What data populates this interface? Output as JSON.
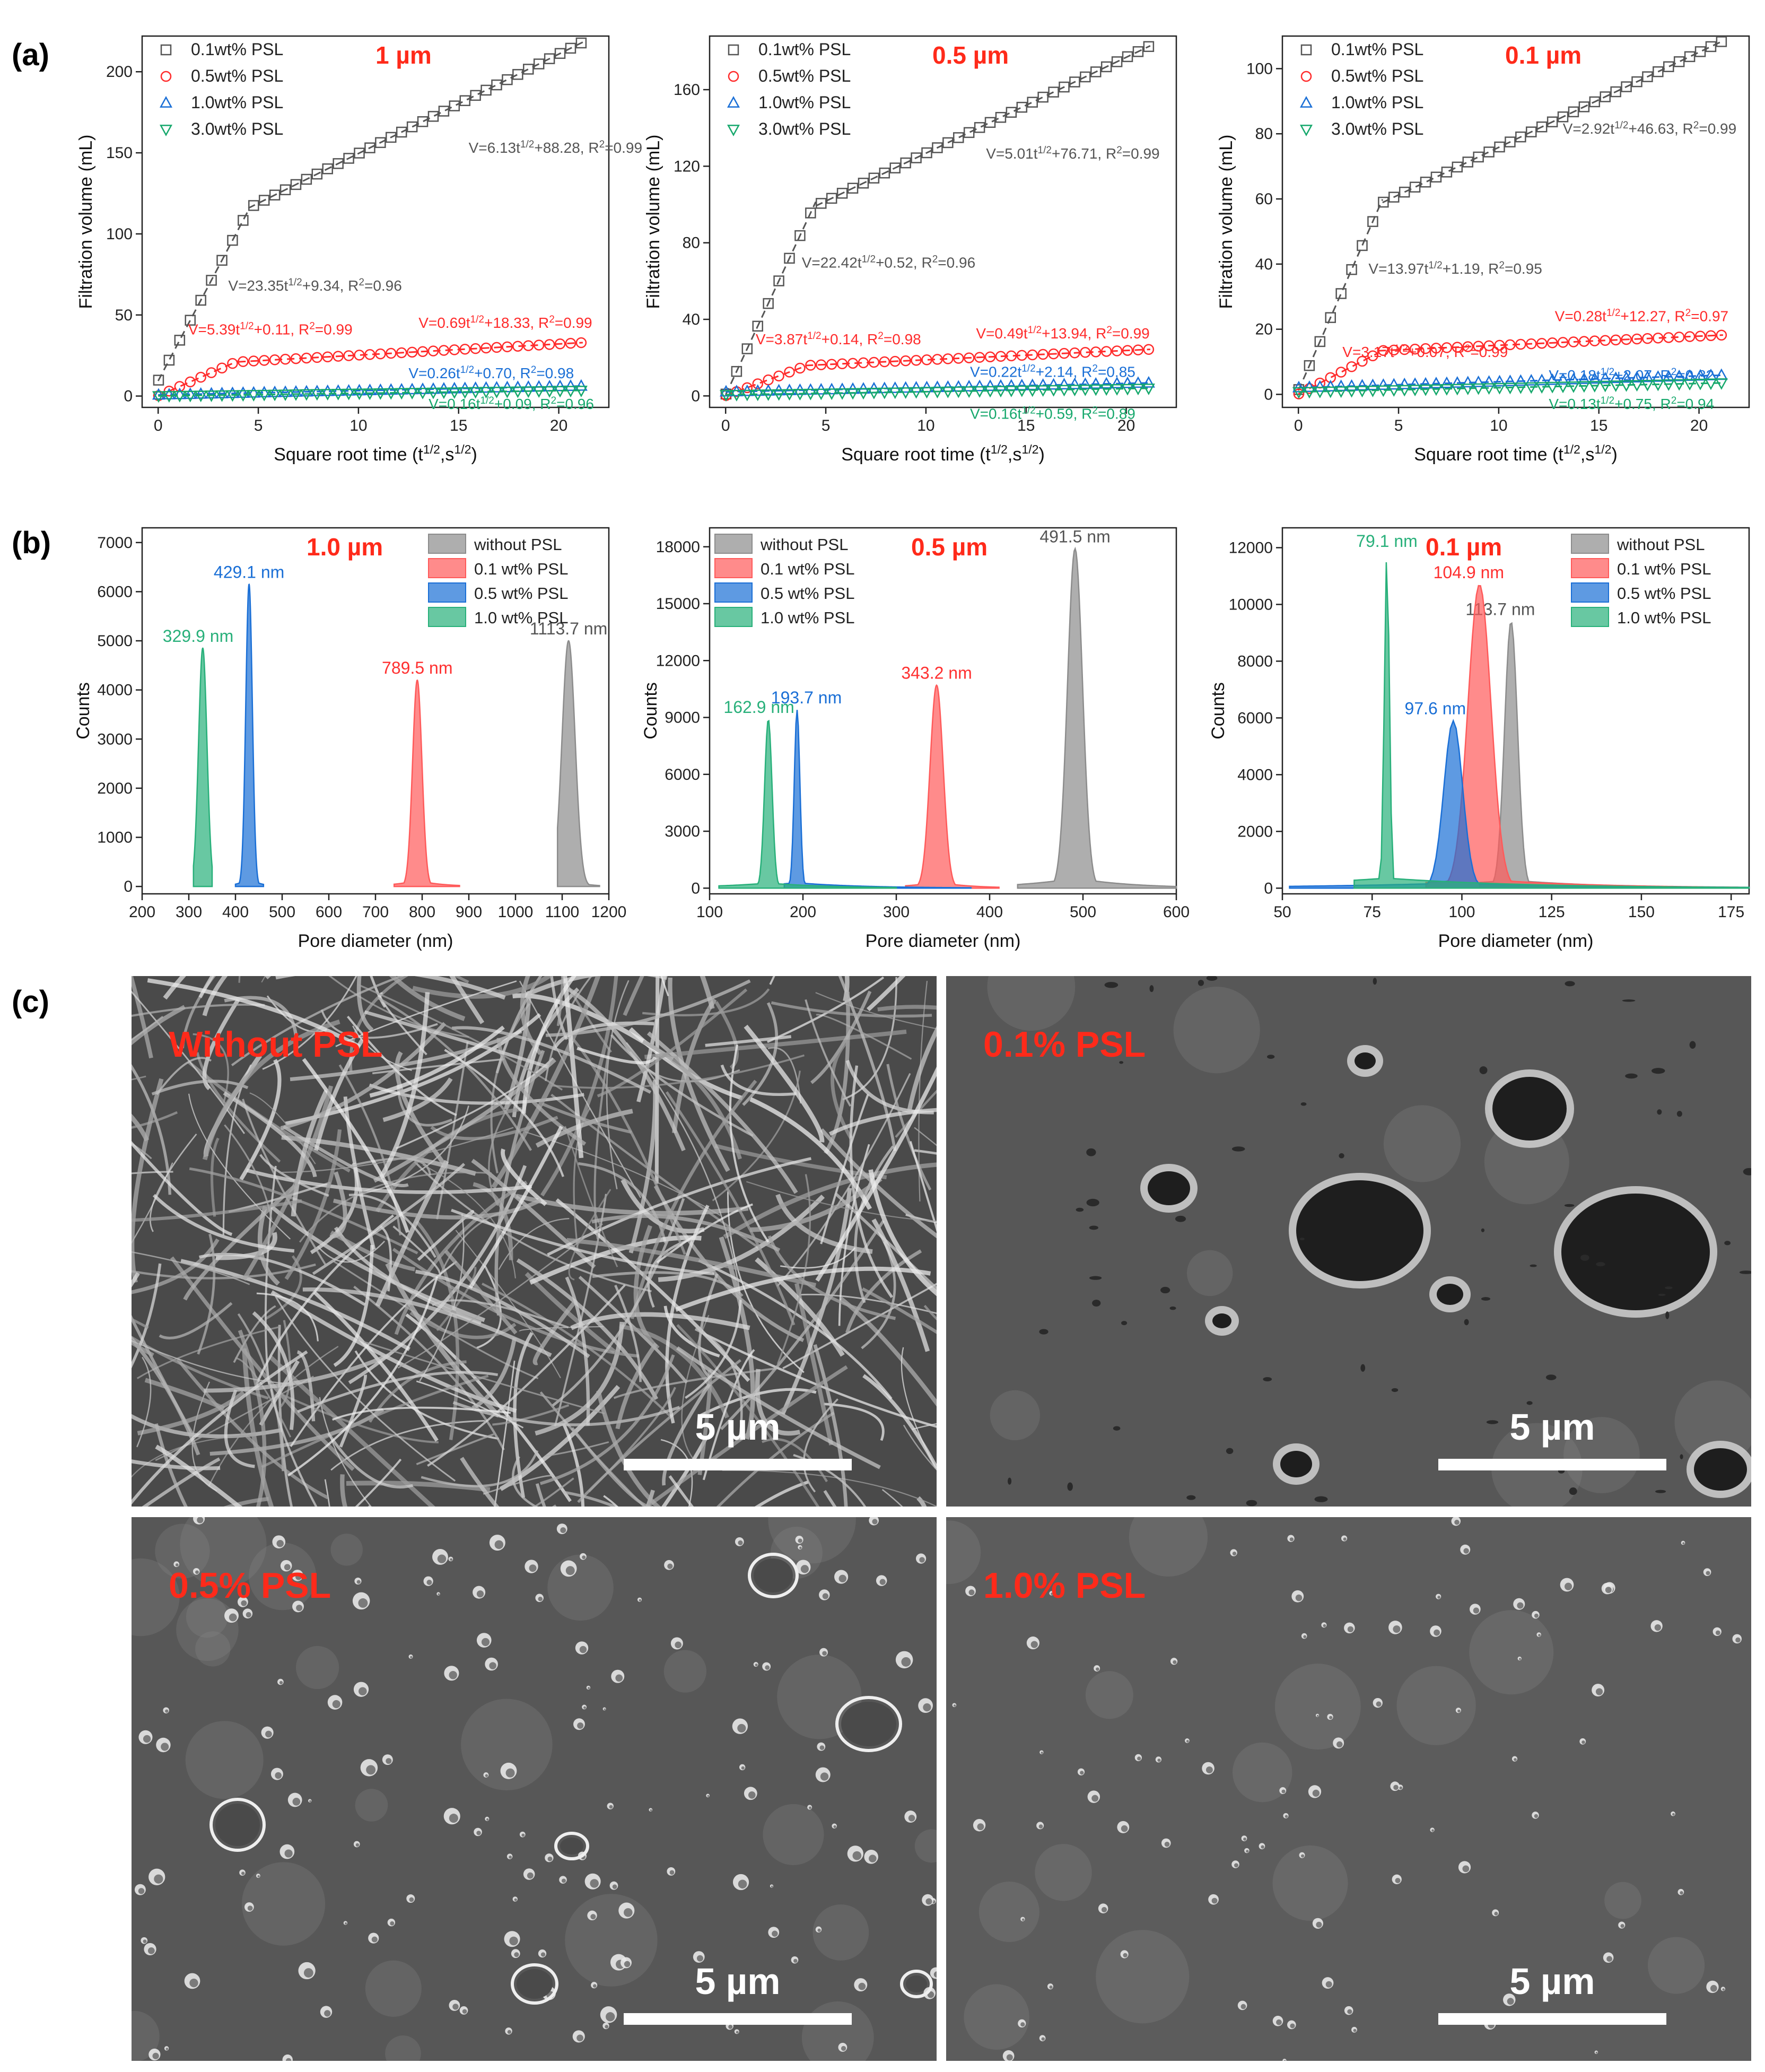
{
  "panel_letters": {
    "a": "(a)",
    "b": "(b)",
    "c": "(c)"
  },
  "chart_data": [
    {
      "type": "scatter",
      "panel": "a",
      "annotation": "1 µm",
      "xlabel": "Square root time (t^1/2,s^1/2)",
      "ylabel": "Filtration volume (mL)",
      "xlim": [
        -0.8,
        22.5
      ],
      "ylim": [
        -7,
        222
      ],
      "xticks": [
        0,
        5,
        10,
        15,
        20
      ],
      "yticks": [
        0,
        50,
        100,
        150,
        200
      ],
      "legend": [
        "0.1wt% PSL",
        "0.5wt% PSL",
        "1.0wt% PSL",
        "3.0wt% PSL"
      ],
      "series": [
        {
          "name": "0.1wt% PSL",
          "marker": "square",
          "color": "#555555",
          "fit1": {
            "k": 23.35,
            "b": 9.34,
            "range": [
              0,
              4.5
            ]
          },
          "fit2": {
            "k": 6.13,
            "b": 88.28,
            "range": [
              4.5,
              21.2
            ]
          },
          "fit_labels": [
            "V=23.35t1/2+9.34, R2=0.96",
            "V=6.13t1/2+88.28, R2=0.99"
          ]
        },
        {
          "name": "0.5wt% PSL",
          "marker": "circle",
          "color": "#ff2b2b",
          "fit1": {
            "k": 5.39,
            "b": 0.11,
            "range": [
              0,
              4
            ]
          },
          "fit2": {
            "k": 0.69,
            "b": 18.33,
            "range": [
              4,
              21.2
            ]
          },
          "fit_labels": [
            "V=5.39t1/2+0.11, R2=0.99",
            "V=0.69t1/2+18.33, R2=0.99"
          ]
        },
        {
          "name": "1.0wt% PSL",
          "marker": "triangle-up",
          "color": "#1a6fd6",
          "fit1": {
            "k": 0.26,
            "b": 0.7,
            "range": [
              0,
              21.2
            ]
          },
          "fit_labels": [
            "V=0.26t1/2+0.70, R2=0.98"
          ]
        },
        {
          "name": "3.0wt% PSL",
          "marker": "triangle-down",
          "color": "#16a86c",
          "fit1": {
            "k": 0.16,
            "b": 0.09,
            "range": [
              0,
              21.2
            ]
          },
          "fit_labels": [
            "V=0.16t1/2+0.09, R2=0.96"
          ]
        }
      ]
    },
    {
      "type": "scatter",
      "panel": "a",
      "annotation": "0.5 µm",
      "xlabel": "Square root time (t^1/2,s^1/2)",
      "ylabel": "Filtration volume (mL)",
      "xlim": [
        -0.8,
        22.5
      ],
      "ylim": [
        -6,
        188
      ],
      "xticks": [
        0,
        5,
        10,
        15,
        20
      ],
      "yticks": [
        0,
        40,
        80,
        120,
        160
      ],
      "legend": [
        "0.1wt% PSL",
        "0.5wt% PSL",
        "1.0wt% PSL",
        "3.0wt% PSL"
      ],
      "series": [
        {
          "name": "0.1wt% PSL",
          "marker": "square",
          "color": "#555555",
          "fit1": {
            "k": 22.42,
            "b": 0.52,
            "range": [
              0,
              4.5
            ]
          },
          "fit2": {
            "k": 5.01,
            "b": 76.71,
            "range": [
              4.5,
              21.2
            ]
          },
          "fit_labels": [
            "V=22.42t1/2+0.52, R2=0.96",
            "V=5.01t1/2+76.71, R2=0.99"
          ]
        },
        {
          "name": "0.5wt% PSL",
          "marker": "circle",
          "color": "#ff2b2b",
          "fit1": {
            "k": 3.87,
            "b": 0.14,
            "range": [
              0,
              4
            ]
          },
          "fit2": {
            "k": 0.49,
            "b": 13.94,
            "range": [
              4,
              21.2
            ]
          },
          "fit_labels": [
            "V=3.87t1/2+0.14, R2=0.98",
            "V=0.49t1/2+13.94, R2=0.99"
          ]
        },
        {
          "name": "1.0wt% PSL",
          "marker": "triangle-up",
          "color": "#1a6fd6",
          "fit1": {
            "k": 0.22,
            "b": 2.14,
            "range": [
              0,
              21.2
            ]
          },
          "fit_labels": [
            "V=0.22t1/2+2.14, R2=0.85"
          ]
        },
        {
          "name": "3.0wt% PSL",
          "marker": "triangle-down",
          "color": "#16a86c",
          "fit1": {
            "k": 0.16,
            "b": 0.59,
            "range": [
              0,
              21.2
            ]
          },
          "fit_labels": [
            "V=0.16t1/2+0.59, R2=0.89"
          ]
        }
      ]
    },
    {
      "type": "scatter",
      "panel": "a",
      "annotation": "0.1 µm",
      "xlabel": "Square root time (t^1/2,s^1/2)",
      "ylabel": "Filtration volume (mL)",
      "xlim": [
        -0.8,
        22.5
      ],
      "ylim": [
        -4,
        110
      ],
      "xticks": [
        0,
        5,
        10,
        15,
        20
      ],
      "yticks": [
        0,
        20,
        40,
        60,
        80,
        100
      ],
      "legend": [
        "0.1wt% PSL",
        "0.5wt% PSL",
        "1.0wt% PSL",
        "3.0wt% PSL"
      ],
      "series": [
        {
          "name": "0.1wt% PSL",
          "marker": "square",
          "color": "#555555",
          "fit1": {
            "k": 13.97,
            "b": 1.19,
            "range": [
              0,
              4.2
            ]
          },
          "fit2": {
            "k": 2.92,
            "b": 46.63,
            "range": [
              4.2,
              21.2
            ]
          },
          "fit_labels": [
            "V=13.97t1/2+1.19, R2=0.95",
            "V=2.92t1/2+46.63, R2=0.99"
          ]
        },
        {
          "name": "0.5wt% PSL",
          "marker": "circle",
          "color": "#ff2b2b",
          "fit1": {
            "k": 3.17,
            "b": 0.07,
            "range": [
              0,
              4
            ]
          },
          "fit2": {
            "k": 0.28,
            "b": 12.27,
            "range": [
              4,
              21.2
            ]
          },
          "fit_labels": [
            "V=3.17t1/2+0.07, R2=0.99",
            "V=0.28t1/2+12.27, R2=0.97"
          ]
        },
        {
          "name": "1.0wt% PSL",
          "marker": "triangle-up",
          "color": "#1a6fd6",
          "fit1": {
            "k": 0.18,
            "b": 2.07,
            "range": [
              0,
              21.2
            ]
          },
          "fit_labels": [
            "V=0.18t1/2+2.07, R2=0.82"
          ]
        },
        {
          "name": "3.0wt% PSL",
          "marker": "triangle-down",
          "color": "#16a86c",
          "fit1": {
            "k": 0.13,
            "b": 0.75,
            "range": [
              0,
              21.2
            ]
          },
          "fit_labels": [
            "V=0.13t1/2+0.75, R2=0.94"
          ]
        }
      ]
    },
    {
      "type": "area",
      "panel": "b",
      "annotation": "1.0 µm",
      "xlabel": "Pore diameter (nm)",
      "ylabel": "Counts",
      "xlim": [
        200,
        1200
      ],
      "ylim": [
        -150,
        7300
      ],
      "xticks": [
        200,
        300,
        400,
        500,
        600,
        700,
        800,
        900,
        1000,
        1100,
        1200
      ],
      "yticks": [
        0,
        1000,
        2000,
        3000,
        4000,
        5000,
        6000,
        7000
      ],
      "legend": [
        "without PSL",
        "0.1 wt% PSL",
        "0.5 wt% PSL",
        "1.0 wt% PSL"
      ],
      "series": [
        {
          "name": "without PSL",
          "color": "#8c8c8c",
          "peak_x": 1113.7,
          "peak_y": 5000,
          "width": 14,
          "base": [
            1090,
            1180
          ],
          "label": "1113.7 nm"
        },
        {
          "name": "0.1 wt% PSL",
          "color": "#ff5a5a",
          "peak_x": 789.5,
          "peak_y": 4200,
          "width": 10,
          "base": [
            740,
            880
          ],
          "label": "789.5 nm"
        },
        {
          "name": "0.5 wt% PSL",
          "color": "#1a6fd6",
          "peak_x": 429.1,
          "peak_y": 6150,
          "width": 7,
          "base": [
            400,
            460
          ],
          "label": "429.1 nm"
        },
        {
          "name": "1.0 wt% PSL",
          "color": "#28b07a",
          "peak_x": 329.9,
          "peak_y": 4850,
          "width": 9,
          "base": [
            310,
            350
          ],
          "label": "329.9 nm"
        }
      ]
    },
    {
      "type": "area",
      "panel": "b",
      "annotation": "0.5 µm",
      "xlabel": "Pore diameter (nm)",
      "ylabel": "Counts",
      "xlim": [
        100,
        600
      ],
      "ylim": [
        -300,
        19000
      ],
      "xticks": [
        100,
        200,
        300,
        400,
        500,
        600
      ],
      "yticks": [
        0,
        3000,
        6000,
        9000,
        12000,
        15000,
        18000
      ],
      "legend": [
        "without PSL",
        "0.1 wt% PSL",
        "0.5 wt% PSL",
        "1.0 wt% PSL"
      ],
      "series": [
        {
          "name": "without PSL",
          "color": "#8c8c8c",
          "peak_x": 491.5,
          "peak_y": 17900,
          "width": 8,
          "base": [
            430,
            600
          ],
          "label": "491.5 nm"
        },
        {
          "name": "0.1 wt% PSL",
          "color": "#ff5a5a",
          "peak_x": 343.2,
          "peak_y": 10700,
          "width": 7,
          "base": [
            310,
            410
          ],
          "label": "343.2 nm"
        },
        {
          "name": "0.5 wt% PSL",
          "color": "#1a6fd6",
          "peak_x": 193.7,
          "peak_y": 9400,
          "width": 3,
          "base": [
            180,
            380
          ],
          "label": "193.7 nm"
        },
        {
          "name": "1.0 wt% PSL",
          "color": "#28b07a",
          "peak_x": 162.9,
          "peak_y": 8900,
          "width": 4,
          "base": [
            110,
            300
          ],
          "label": "162.9 nm"
        }
      ]
    },
    {
      "type": "area",
      "panel": "b",
      "annotation": "0.1 µm",
      "xlabel": "Pore diameter (nm)",
      "ylabel": "Counts",
      "xlim": [
        50,
        180
      ],
      "ylim": [
        -200,
        12700
      ],
      "xticks": [
        50,
        75,
        100,
        125,
        150,
        175
      ],
      "yticks": [
        0,
        2000,
        4000,
        6000,
        8000,
        10000,
        12000
      ],
      "legend": [
        "without PSL",
        "0.1 wt% PSL",
        "0.5 wt% PSL",
        "1.0 wt% PSL"
      ],
      "series": [
        {
          "name": "without PSL",
          "color": "#8c8c8c",
          "peak_x": 113.7,
          "peak_y": 9400,
          "width": 1.8,
          "base": [
            105,
            180
          ],
          "label": "113.7 nm"
        },
        {
          "name": "0.1 wt% PSL",
          "color": "#ff5a5a",
          "peak_x": 104.9,
          "peak_y": 10700,
          "width": 3.2,
          "base": [
            90,
            180
          ],
          "label": "104.9 nm"
        },
        {
          "name": "0.5 wt% PSL",
          "color": "#1a6fd6",
          "peak_x": 97.6,
          "peak_y": 5900,
          "width": 2.6,
          "base": [
            52,
            180
          ],
          "label": "97.6 nm"
        },
        {
          "name": "1.0 wt% PSL",
          "color": "#28b07a",
          "peak_x": 79.1,
          "peak_y": 11800,
          "width": 0.7,
          "base": [
            70,
            180
          ],
          "label": "79.1 nm"
        }
      ]
    }
  ],
  "sem_images": [
    {
      "label": "Without PSL",
      "scale": "5 µm",
      "texture": "fibrous"
    },
    {
      "label": "0.1% PSL",
      "scale": "5 µm",
      "texture": "large-pores"
    },
    {
      "label": "0.5% PSL",
      "scale": "5 µm",
      "texture": "small-pores"
    },
    {
      "label": "1.0% PSL",
      "scale": "5 µm",
      "texture": "smooth"
    }
  ]
}
